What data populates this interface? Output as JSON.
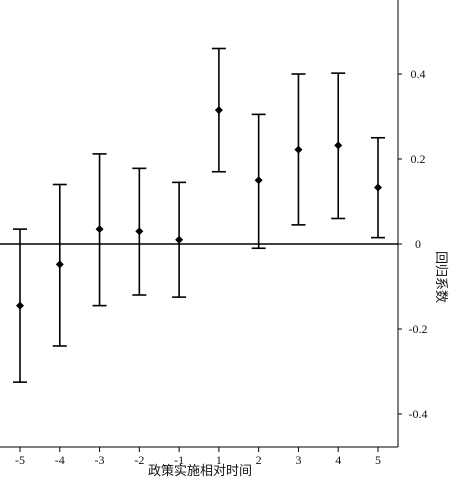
{
  "chart_data": {
    "type": "scatter",
    "xlabel": "政策实施相对时间",
    "ylabel": "回归系数",
    "x": [
      -5,
      -4,
      -3,
      -2,
      -1,
      1,
      2,
      3,
      4,
      5
    ],
    "x_tick_labels": [
      "-5",
      "-4",
      "-3",
      "-2",
      "-1",
      "1",
      "2",
      "3",
      "4",
      "5"
    ],
    "series": [
      {
        "estimate": [
          -0.145,
          -0.048,
          0.035,
          0.03,
          0.01,
          0.315,
          0.15,
          0.222,
          0.232,
          0.133
        ],
        "ci_lower": [
          -0.325,
          -0.24,
          -0.145,
          -0.12,
          -0.125,
          0.17,
          -0.01,
          0.045,
          0.06,
          0.015
        ],
        "ci_upper": [
          0.035,
          0.14,
          0.212,
          0.178,
          0.145,
          0.46,
          0.305,
          0.4,
          0.402,
          0.25
        ]
      }
    ],
    "y_ticks": [
      0.4,
      0.2,
      0,
      -0.2,
      -0.4
    ],
    "y_tick_labels": [
      "0.4",
      "0.2",
      "0",
      "-0.2",
      "-0.4"
    ],
    "ylim": [
      -0.48,
      0.58
    ],
    "xlim": [
      -5.2,
      5.5
    ],
    "reference_line_y": 0,
    "y_axis_position": "right",
    "grid": false,
    "legend": "none"
  }
}
